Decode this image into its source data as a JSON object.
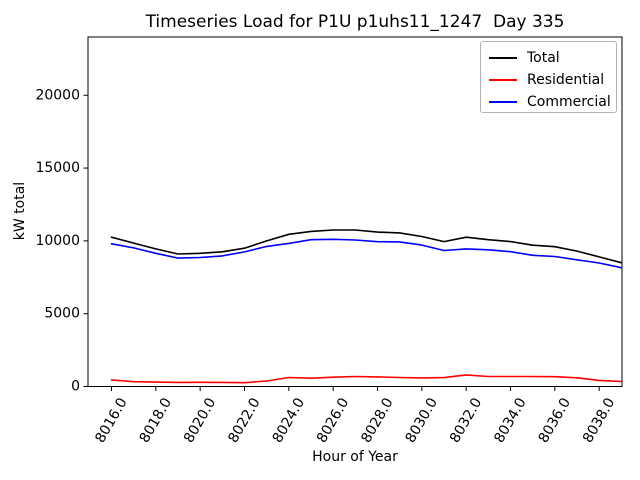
{
  "chart_data": {
    "type": "line",
    "title": "Timeseries Load for P1U p1uhs11_1247  Day 335",
    "xlabel": "Hour of Year",
    "ylabel": "kW total",
    "x": [
      8016,
      8017,
      8018,
      8019,
      8020,
      8021,
      8022,
      8023,
      8024,
      8025,
      8026,
      8027,
      8028,
      8029,
      8030,
      8031,
      8032,
      8033,
      8034,
      8035,
      8036,
      8037,
      8038,
      8039
    ],
    "series": [
      {
        "name": "Total",
        "color": "#000000",
        "values": [
          10250,
          9850,
          9450,
          9100,
          9150,
          9250,
          9500,
          10000,
          10450,
          10650,
          10750,
          10750,
          10600,
          10550,
          10300,
          9950,
          10250,
          10080,
          9950,
          9700,
          9600,
          9300,
          8900,
          8500
        ]
      },
      {
        "name": "Residential",
        "color": "#ff0000",
        "values": [
          450,
          330,
          300,
          280,
          290,
          280,
          260,
          380,
          620,
          570,
          640,
          690,
          660,
          620,
          590,
          610,
          800,
          690,
          690,
          690,
          670,
          600,
          420,
          340
        ]
      },
      {
        "name": "Commercial",
        "color": "#0000ff",
        "values": [
          9800,
          9520,
          9150,
          8820,
          8860,
          8970,
          9240,
          9620,
          9830,
          10080,
          10110,
          10060,
          9940,
          9930,
          9710,
          9340,
          9450,
          9390,
          9260,
          9010,
          8930,
          8700,
          8480,
          8160
        ]
      }
    ],
    "xtick_values": [
      8016,
      8018,
      8020,
      8022,
      8024,
      8026,
      8028,
      8030,
      8032,
      8034,
      8036,
      8038
    ],
    "xtick_labels": [
      "8016.0",
      "8018.0",
      "8020.0",
      "8022.0",
      "8024.0",
      "8026.0",
      "8028.0",
      "8030.0",
      "8032.0",
      "8034.0",
      "8036.0",
      "8038.0"
    ],
    "ytick_values": [
      0,
      5000,
      10000,
      15000,
      20000
    ],
    "ytick_labels": [
      "0",
      "5000",
      "10000",
      "15000",
      "20000"
    ],
    "xlim": [
      8014.94,
      8039.03
    ],
    "ylim": [
      0,
      24000
    ],
    "grid": false,
    "legend_position": "upper right"
  }
}
